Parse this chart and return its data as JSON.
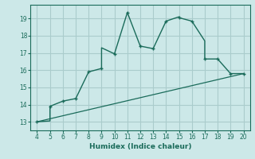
{
  "xlabel": "Humidex (Indice chaleur)",
  "bg_color": "#cce8e8",
  "grid_color": "#aacccc",
  "line_color": "#1a6b5a",
  "curve_x": [
    4,
    5,
    5,
    6,
    7,
    7,
    8,
    9,
    9,
    10,
    11,
    12,
    12,
    13,
    14,
    14,
    15,
    15,
    16,
    17,
    17,
    18,
    19,
    20
  ],
  "curve_y": [
    13.0,
    13.05,
    13.9,
    14.2,
    14.35,
    14.35,
    15.9,
    16.1,
    17.3,
    16.95,
    19.35,
    17.4,
    17.4,
    17.25,
    18.85,
    18.85,
    19.1,
    19.05,
    18.85,
    17.7,
    16.65,
    16.65,
    15.8,
    15.8
  ],
  "line_x": [
    4,
    20
  ],
  "line_y": [
    13.0,
    15.8
  ],
  "marker_x": [
    4,
    5,
    6,
    7,
    8,
    9,
    10,
    11,
    12,
    13,
    14,
    15,
    16,
    17,
    18,
    19,
    20
  ],
  "marker_y": [
    13.0,
    13.9,
    14.2,
    14.35,
    15.9,
    16.1,
    16.95,
    19.35,
    17.4,
    17.25,
    18.85,
    19.05,
    18.85,
    16.65,
    16.65,
    15.8,
    15.8
  ],
  "xlim": [
    3.5,
    20.5
  ],
  "ylim": [
    12.5,
    19.8
  ],
  "xticks": [
    4,
    5,
    6,
    7,
    8,
    9,
    10,
    11,
    12,
    13,
    14,
    15,
    16,
    17,
    18,
    19,
    20
  ],
  "yticks": [
    13,
    14,
    15,
    16,
    17,
    18,
    19
  ]
}
